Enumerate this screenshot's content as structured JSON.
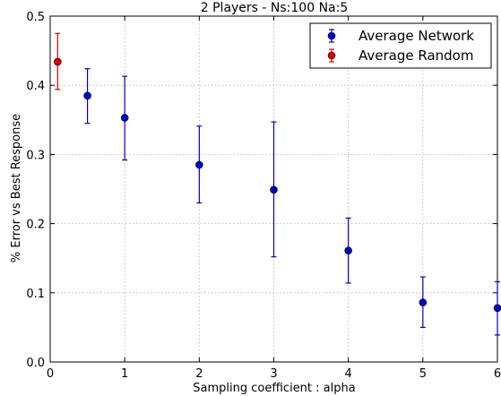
{
  "chart_data": {
    "type": "scatter",
    "title": "2 Players - Ns:100 Na:5",
    "xlabel": "Sampling coefficient : alpha",
    "ylabel": "% Error vs Best Response",
    "xlim": [
      0,
      6
    ],
    "ylim": [
      0,
      0.5
    ],
    "xticks": [
      "0",
      "1",
      "2",
      "3",
      "4",
      "5",
      "6"
    ],
    "yticks": [
      "0.0",
      "0.1",
      "0.2",
      "0.3",
      "0.4",
      "0.5"
    ],
    "grid": true,
    "legend_position": "top-right",
    "series": [
      {
        "name": "Average Network",
        "color": "#0000cc",
        "points": [
          {
            "x": 0.5,
            "y": 0.385,
            "err_low": 0.345,
            "err_high": 0.424
          },
          {
            "x": 1.0,
            "y": 0.353,
            "err_low": 0.292,
            "err_high": 0.413
          },
          {
            "x": 2.0,
            "y": 0.285,
            "err_low": 0.23,
            "err_high": 0.341
          },
          {
            "x": 3.0,
            "y": 0.249,
            "err_low": 0.152,
            "err_high": 0.347
          },
          {
            "x": 4.0,
            "y": 0.161,
            "err_low": 0.114,
            "err_high": 0.208
          },
          {
            "x": 5.0,
            "y": 0.086,
            "err_low": 0.05,
            "err_high": 0.123
          },
          {
            "x": 6.0,
            "y": 0.078,
            "err_low": 0.039,
            "err_high": 0.116
          }
        ]
      },
      {
        "name": "Average Random",
        "color": "#dd0000",
        "points": [
          {
            "x": 0.1,
            "y": 0.434,
            "err_low": 0.394,
            "err_high": 0.475
          }
        ]
      }
    ]
  }
}
